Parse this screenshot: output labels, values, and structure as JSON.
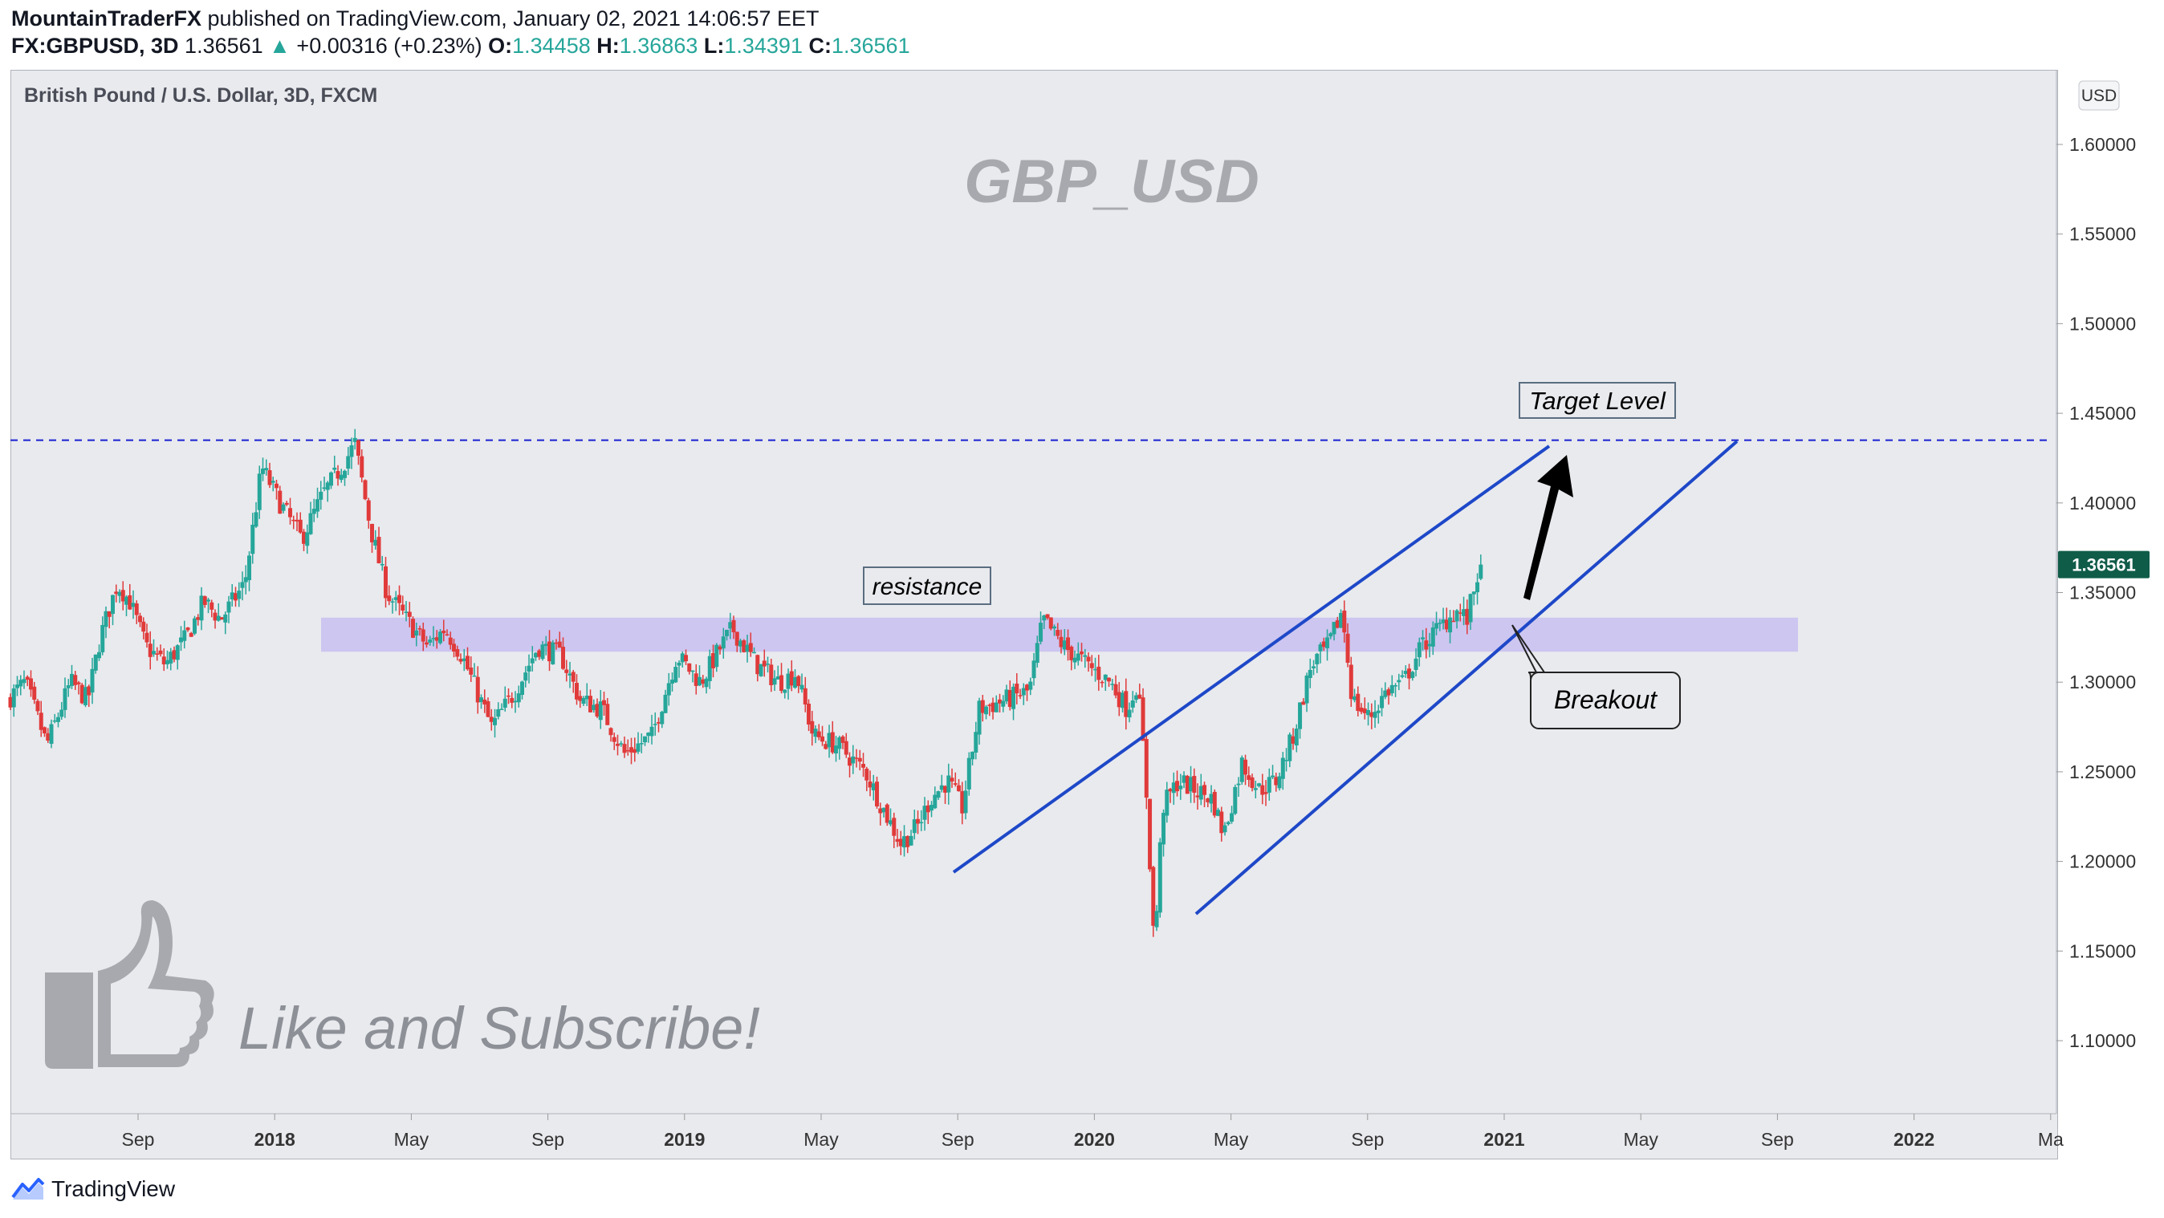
{
  "header": {
    "author": "MountainTraderFX",
    "published_text": "published on TradingView.com, January 02, 2021 14:06:57 EET",
    "symbol": "FX:GBPUSD, 3D",
    "last": "1.36561",
    "arrow": "▲",
    "change": "+0.00316 (+0.23%)",
    "o_label": "O:",
    "o_value": "1.34458",
    "h_label": "H:",
    "h_value": "1.36863",
    "l_label": "L:",
    "l_value": "1.34391",
    "c_label": "C:",
    "c_value": "1.36561"
  },
  "chart_data": {
    "type": "candlestick",
    "title": "British Pound / U.S. Dollar, 3D, FXCM",
    "watermark": "GBP_USD",
    "currency_badge": "USD",
    "y_ticks": [
      "1.60000",
      "1.55000",
      "1.50000",
      "1.45000",
      "1.40000",
      "1.35000",
      "1.30000",
      "1.25000",
      "1.20000",
      "1.15000",
      "1.10000"
    ],
    "ylim": [
      1.062,
      1.637
    ],
    "x_ticks": [
      "Sep",
      "2018",
      "May",
      "Sep",
      "2019",
      "May",
      "Sep",
      "2020",
      "May",
      "Sep",
      "2021",
      "May",
      "Sep",
      "2022",
      "Ma"
    ],
    "x_tick_bold": [
      false,
      true,
      false,
      false,
      true,
      false,
      false,
      true,
      false,
      false,
      true,
      false,
      false,
      true,
      false
    ],
    "xlim": [
      "2017-06-15",
      "2022-05-15"
    ],
    "last_price_label": "1.36561",
    "price_path": [
      [
        "2017-06-15",
        1.29
      ],
      [
        "2017-07-01",
        1.3
      ],
      [
        "2017-07-20",
        1.265
      ],
      [
        "2017-08-10",
        1.3
      ],
      [
        "2017-08-25",
        1.29
      ],
      [
        "2017-09-05",
        1.325
      ],
      [
        "2017-09-20",
        1.355
      ],
      [
        "2017-10-01",
        1.345
      ],
      [
        "2017-10-15",
        1.32
      ],
      [
        "2017-11-01",
        1.31
      ],
      [
        "2017-11-20",
        1.325
      ],
      [
        "2017-12-05",
        1.345
      ],
      [
        "2017-12-20",
        1.335
      ],
      [
        "2018-01-10",
        1.355
      ],
      [
        "2018-01-25",
        1.42
      ],
      [
        "2018-02-10",
        1.4
      ],
      [
        "2018-03-01",
        1.38
      ],
      [
        "2018-03-20",
        1.405
      ],
      [
        "2018-04-05",
        1.42
      ],
      [
        "2018-04-17",
        1.433
      ],
      [
        "2018-05-01",
        1.385
      ],
      [
        "2018-05-15",
        1.35
      ],
      [
        "2018-06-01",
        1.335
      ],
      [
        "2018-06-20",
        1.32
      ],
      [
        "2018-07-05",
        1.33
      ],
      [
        "2018-07-20",
        1.315
      ],
      [
        "2018-08-15",
        1.275
      ],
      [
        "2018-09-05",
        1.295
      ],
      [
        "2018-09-25",
        1.32
      ],
      [
        "2018-10-15",
        1.315
      ],
      [
        "2018-11-01",
        1.29
      ],
      [
        "2018-11-20",
        1.285
      ],
      [
        "2018-12-10",
        1.26
      ],
      [
        "2019-01-03",
        1.27
      ],
      [
        "2019-01-25",
        1.315
      ],
      [
        "2019-02-15",
        1.3
      ],
      [
        "2019-03-05",
        1.32
      ],
      [
        "2019-03-15",
        1.33
      ],
      [
        "2019-04-05",
        1.31
      ],
      [
        "2019-04-25",
        1.3
      ],
      [
        "2019-05-10",
        1.305
      ],
      [
        "2019-05-25",
        1.27
      ],
      [
        "2019-06-15",
        1.265
      ],
      [
        "2019-07-10",
        1.25
      ],
      [
        "2019-07-25",
        1.23
      ],
      [
        "2019-08-10",
        1.21
      ],
      [
        "2019-08-25",
        1.22
      ],
      [
        "2019-09-05",
        1.235
      ],
      [
        "2019-09-20",
        1.245
      ],
      [
        "2019-10-03",
        1.23
      ],
      [
        "2019-10-18",
        1.285
      ],
      [
        "2019-11-10",
        1.29
      ],
      [
        "2019-12-01",
        1.295
      ],
      [
        "2019-12-13",
        1.335
      ],
      [
        "2019-12-31",
        1.32
      ],
      [
        "2020-01-20",
        1.31
      ],
      [
        "2020-02-10",
        1.3
      ],
      [
        "2020-02-25",
        1.285
      ],
      [
        "2020-03-05",
        1.3
      ],
      [
        "2020-03-12",
        1.25
      ],
      [
        "2020-03-20",
        1.15
      ],
      [
        "2020-03-27",
        1.23
      ],
      [
        "2020-04-10",
        1.245
      ],
      [
        "2020-04-25",
        1.24
      ],
      [
        "2020-05-10",
        1.235
      ],
      [
        "2020-05-20",
        1.215
      ],
      [
        "2020-06-05",
        1.255
      ],
      [
        "2020-06-20",
        1.24
      ],
      [
        "2020-07-05",
        1.245
      ],
      [
        "2020-07-20",
        1.27
      ],
      [
        "2020-08-05",
        1.31
      ],
      [
        "2020-08-20",
        1.32
      ],
      [
        "2020-09-01",
        1.34
      ],
      [
        "2020-09-10",
        1.29
      ],
      [
        "2020-09-25",
        1.28
      ],
      [
        "2020-10-10",
        1.295
      ],
      [
        "2020-10-25",
        1.3
      ],
      [
        "2020-11-10",
        1.32
      ],
      [
        "2020-11-25",
        1.33
      ],
      [
        "2020-12-10",
        1.34
      ],
      [
        "2020-12-20",
        1.335
      ],
      [
        "2020-12-31",
        1.3656
      ]
    ]
  },
  "annotations": {
    "resistance_label": "resistance",
    "target_label": "Target Level",
    "breakout_label": "Breakout",
    "like_text": "Like and Subscribe!",
    "resistance_zone": [
      1.317,
      1.336
    ],
    "target_level": 1.435,
    "line_color": "#1e48c8",
    "target_line_color": "#1a22d0",
    "zone_color": "#c8bff0"
  },
  "colors": {
    "up": "#26a69a",
    "down": "#e03a3a",
    "background": "#e9eaee",
    "last_price_bg": "#0f5c49"
  },
  "footer": {
    "brand": "TradingView"
  }
}
